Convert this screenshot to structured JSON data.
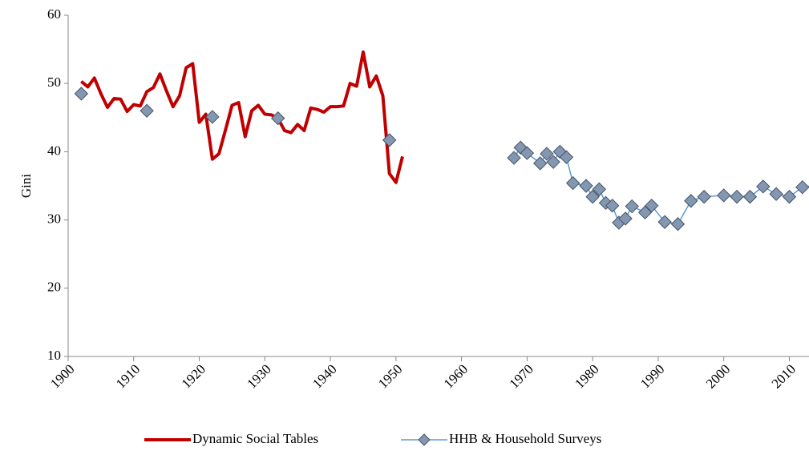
{
  "chart_data": {
    "type": "line",
    "y_label": "Gini",
    "xlim": [
      1900,
      2013
    ],
    "xticks": [
      1900,
      1910,
      1920,
      1930,
      1940,
      1950,
      1960,
      1970,
      1980,
      1990,
      2000,
      2010
    ],
    "ylim": [
      10,
      60
    ],
    "yticks": [
      10,
      20,
      30,
      40,
      50,
      60
    ],
    "legend": "bottom",
    "series": [
      {
        "name": "Dynamic Social Tables",
        "color": "#c00000",
        "style": "line",
        "x": [
          1902,
          1903,
          1904,
          1905,
          1906,
          1907,
          1908,
          1909,
          1910,
          1911,
          1912,
          1913,
          1914,
          1915,
          1916,
          1917,
          1918,
          1919,
          1920,
          1921,
          1922,
          1923,
          1924,
          1925,
          1926,
          1927,
          1928,
          1929,
          1930,
          1931,
          1932,
          1933,
          1934,
          1935,
          1936,
          1937,
          1938,
          1939,
          1940,
          1941,
          1942,
          1943,
          1944,
          1945,
          1946,
          1947,
          1948,
          1949,
          1950,
          1951
        ],
        "values": [
          50.3,
          49.5,
          50.8,
          48.5,
          46.5,
          47.8,
          47.7,
          45.9,
          46.9,
          46.7,
          48.8,
          49.4,
          51.4,
          48.9,
          46.6,
          48.2,
          52.3,
          52.9,
          44.3,
          45.5,
          38.9,
          39.7,
          43.2,
          46.8,
          47.2,
          42.2,
          46.0,
          46.8,
          45.5,
          45.4,
          44.9,
          43.1,
          42.8,
          44.0,
          43.1,
          46.4,
          46.2,
          45.8,
          46.6,
          46.6,
          46.7,
          50.0,
          49.6,
          54.6,
          49.5,
          51.1,
          48.2,
          36.8,
          35.5,
          39.3
        ]
      },
      {
        "name": "HHB & Household Surveys",
        "color": "#5b9bd5",
        "marker_color": "#8497b0",
        "style": "line-diamond",
        "x": [
          1902,
          null,
          1912,
          null,
          1922,
          null,
          1932,
          null,
          1949,
          null,
          1968,
          1969,
          1970,
          1972,
          1973,
          1974,
          1975,
          1976,
          1977,
          1979,
          1980,
          1981,
          1982,
          1983,
          1984,
          1985,
          1986,
          1988,
          1989,
          1991,
          1993,
          1995,
          1997,
          2000,
          2002,
          2004,
          2006,
          2008,
          2010,
          2012,
          2014
        ],
        "values": [
          48.5,
          null,
          46.0,
          null,
          45.1,
          null,
          44.9,
          null,
          41.7,
          null,
          39.1,
          40.6,
          39.8,
          38.3,
          39.7,
          38.5,
          40.0,
          39.2,
          35.4,
          35.0,
          33.4,
          34.5,
          32.5,
          32.1,
          29.6,
          30.2,
          32.0,
          31.1,
          32.1,
          29.7,
          29.4,
          32.8,
          33.4,
          33.6,
          33.4,
          33.4,
          34.9,
          33.8,
          33.4,
          34.8,
          35.0
        ]
      }
    ]
  }
}
